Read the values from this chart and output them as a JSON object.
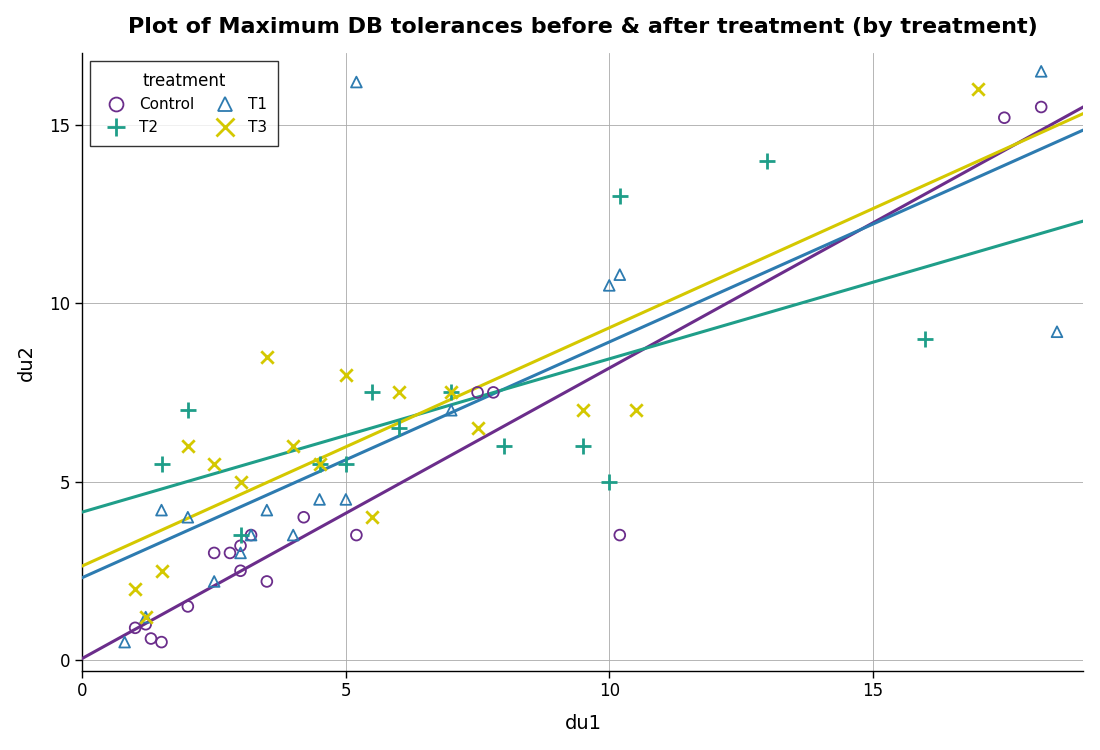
{
  "title": "Plot of Maximum DB tolerances before & after treatment (by treatment)",
  "xlabel": "du1",
  "ylabel": "du2",
  "xlim": [
    0,
    19
  ],
  "ylim": [
    -0.3,
    17
  ],
  "xticks": [
    0,
    5,
    10,
    15
  ],
  "yticks": [
    0,
    5,
    10,
    15
  ],
  "control": {
    "label": "Control",
    "color": "#6B2D8B",
    "du1": [
      1.0,
      1.2,
      1.3,
      1.5,
      2.0,
      2.5,
      2.8,
      3.0,
      3.0,
      3.2,
      3.5,
      4.2,
      5.2,
      7.5,
      7.8,
      10.2,
      17.5,
      18.2
    ],
    "du2": [
      0.9,
      1.0,
      0.6,
      0.5,
      1.5,
      3.0,
      3.0,
      2.5,
      3.2,
      3.5,
      2.2,
      4.0,
      3.5,
      7.5,
      7.5,
      3.5,
      15.2,
      15.5
    ]
  },
  "t1": {
    "label": "T1",
    "color": "#2D7BB0",
    "du1": [
      0.8,
      1.2,
      1.5,
      2.0,
      2.5,
      3.0,
      3.2,
      3.5,
      4.0,
      4.5,
      5.0,
      5.2,
      7.0,
      10.0,
      10.2,
      18.2,
      18.5
    ],
    "du2": [
      0.5,
      1.2,
      4.2,
      4.0,
      2.2,
      3.0,
      3.5,
      4.2,
      3.5,
      4.5,
      4.5,
      16.2,
      7.0,
      10.5,
      10.8,
      16.5,
      9.2
    ]
  },
  "t2": {
    "label": "T2",
    "color": "#1F9E89",
    "du1": [
      1.5,
      2.0,
      3.0,
      4.5,
      5.0,
      5.5,
      6.0,
      7.0,
      8.0,
      9.5,
      10.0,
      10.2,
      13.0,
      16.0
    ],
    "du2": [
      5.5,
      7.0,
      3.5,
      5.5,
      5.5,
      7.5,
      6.5,
      7.5,
      6.0,
      6.0,
      5.0,
      13.0,
      14.0,
      9.0
    ]
  },
  "t3": {
    "label": "T3",
    "color": "#D4C800",
    "du1": [
      1.0,
      1.2,
      1.5,
      2.0,
      2.5,
      3.0,
      3.5,
      4.0,
      4.5,
      5.0,
      5.5,
      6.0,
      7.0,
      7.5,
      9.5,
      10.5,
      17.0
    ],
    "du2": [
      2.0,
      1.2,
      2.5,
      6.0,
      5.5,
      5.0,
      8.5,
      6.0,
      5.5,
      8.0,
      4.0,
      7.5,
      7.5,
      6.5,
      7.0,
      7.0,
      16.0
    ]
  },
  "background_color": "#FFFFFF",
  "grid_color": "#AAAAAA"
}
